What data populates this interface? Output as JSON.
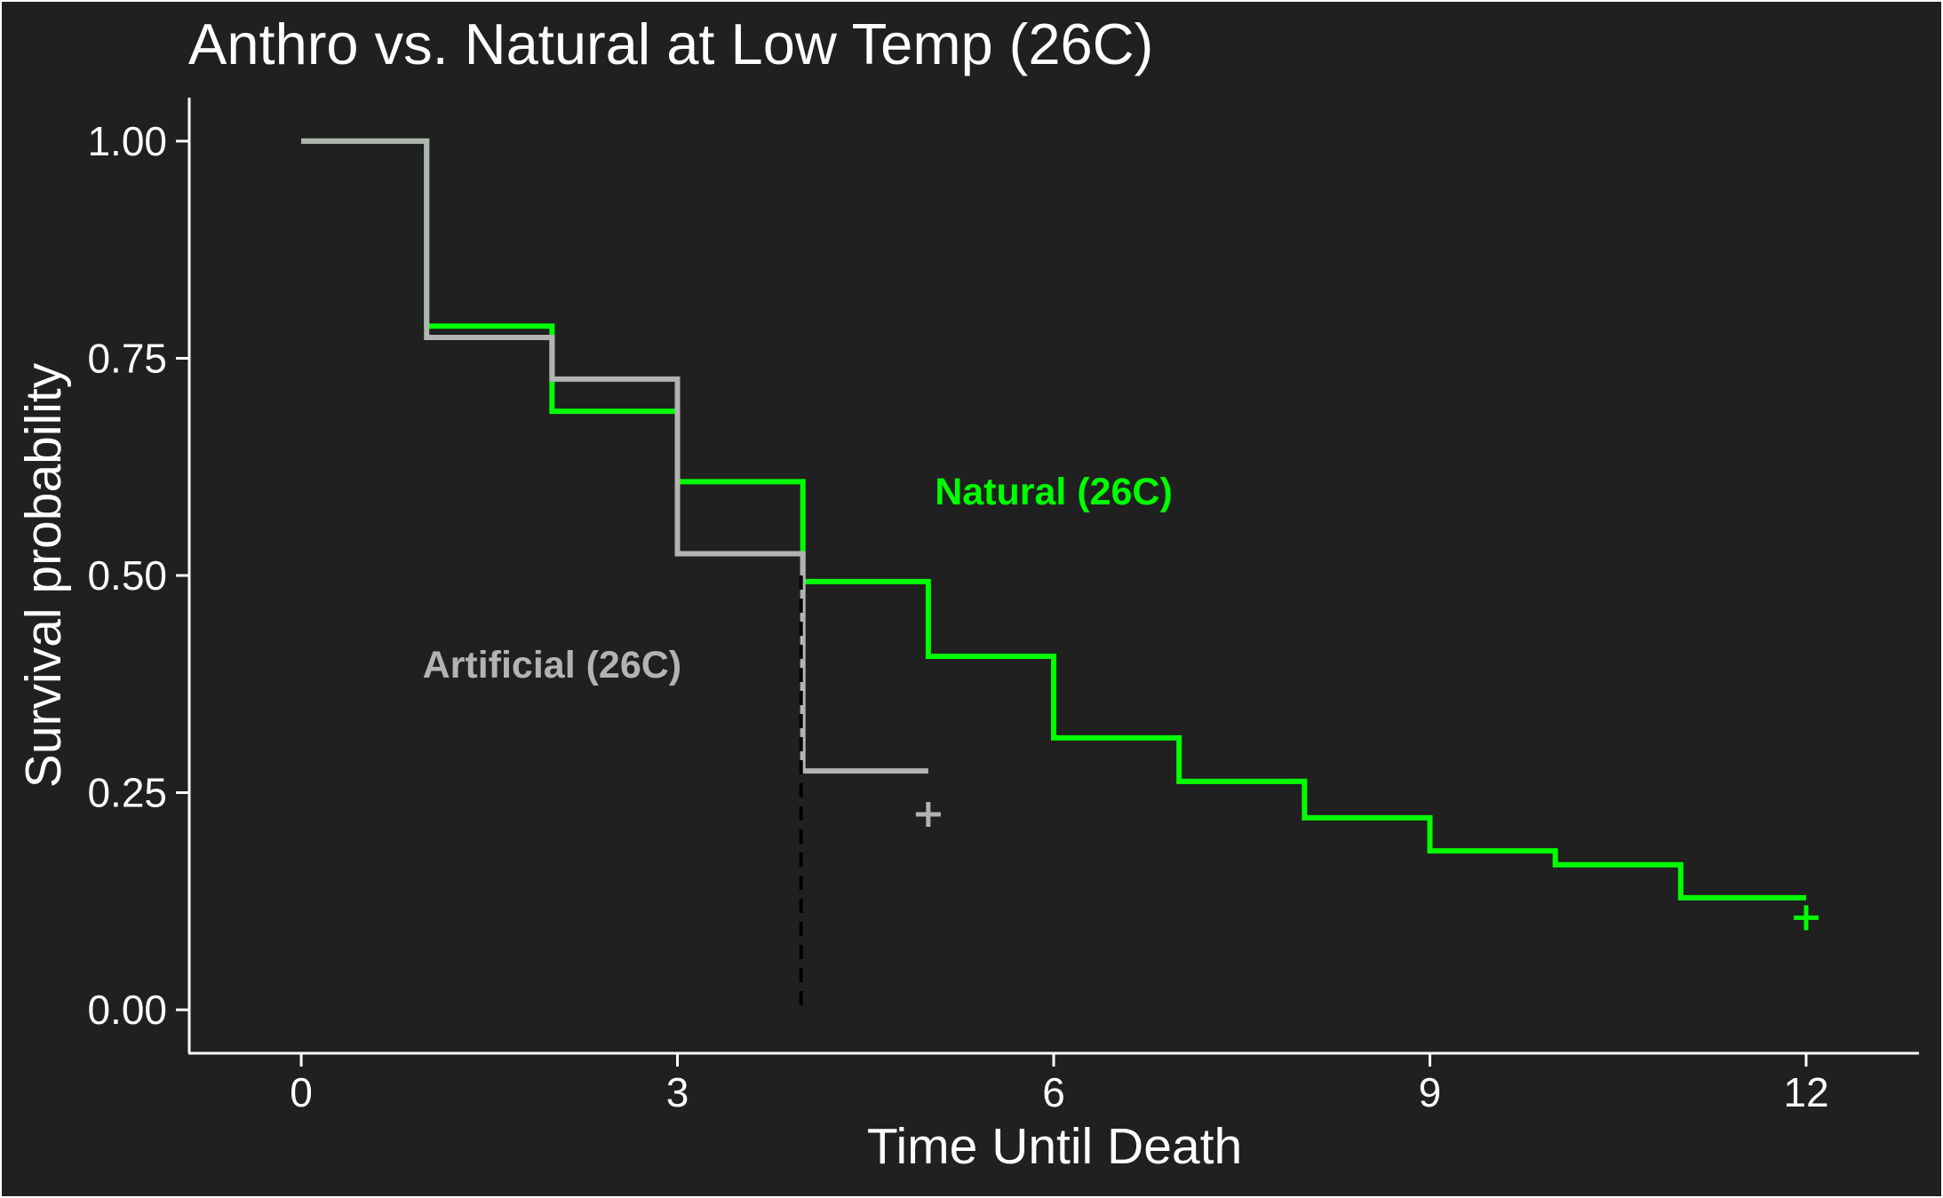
{
  "chart_data": {
    "type": "line",
    "subtype": "step",
    "title": "Anthro vs. Natural at Low Temp (26C)",
    "xlabel": "Time Until Death",
    "ylabel": "Survival probability",
    "xlim": [
      -0.9,
      12.9
    ],
    "ylim": [
      -0.05,
      1.05
    ],
    "xticks": [
      0,
      3,
      6,
      9,
      12
    ],
    "yticks": [
      0.0,
      0.25,
      0.5,
      0.75,
      1.0
    ],
    "xtick_labels": [
      "0",
      "3",
      "6",
      "9",
      "12"
    ],
    "ytick_labels": [
      "0.00",
      "0.25",
      "0.50",
      "0.75",
      "1.00"
    ],
    "grid": false,
    "legend": "none",
    "background": "#202020",
    "series": [
      {
        "name": "Natural (26C)",
        "color": "#00ff00",
        "x": [
          0,
          1,
          2,
          3,
          4,
          5,
          6,
          7,
          8,
          9,
          10,
          11,
          12
        ],
        "y": [
          1.0,
          0.787,
          0.689,
          0.608,
          0.493,
          0.407,
          0.313,
          0.263,
          0.221,
          0.183,
          0.167,
          0.129,
          0.129
        ],
        "censor": {
          "x": 12,
          "y": 0.106
        }
      },
      {
        "name": "Artificial (26C)",
        "color": "#b3b3b3",
        "x": [
          0,
          1,
          2,
          3,
          4,
          5
        ],
        "y": [
          1.0,
          0.774,
          0.726,
          0.525,
          0.275,
          0.275
        ],
        "censor": {
          "x": 5,
          "y": 0.225
        }
      }
    ],
    "median_line": {
      "x": 4,
      "y_from": 0.0,
      "y_to": 0.5,
      "style": "dashed",
      "color": "#000000"
    },
    "annotations": [
      {
        "text": "Natural (26C)",
        "x": 6.0,
        "y": 0.597,
        "color": "#00ff00"
      },
      {
        "text": "Artificial (26C)",
        "x": 2.0,
        "y": 0.398,
        "color": "#b3b3b3"
      }
    ]
  }
}
